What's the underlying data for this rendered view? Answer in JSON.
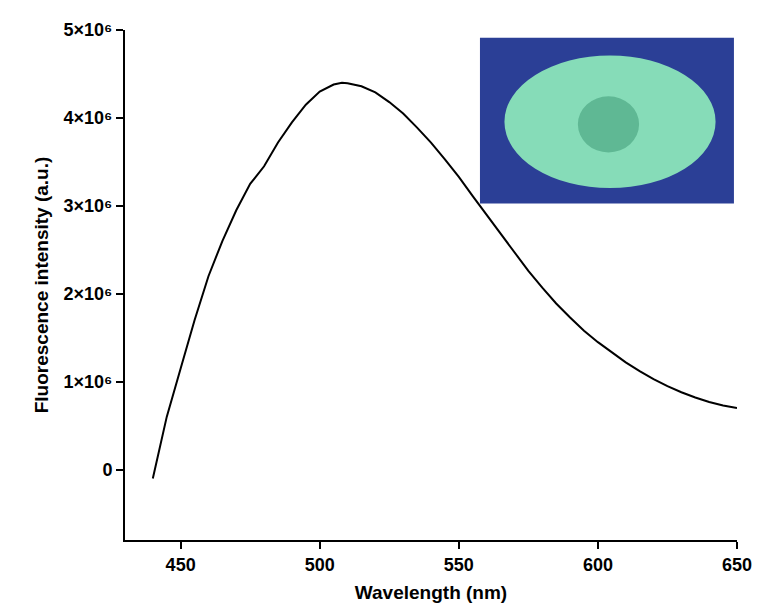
{
  "chart_data": {
    "type": "line",
    "x_label": "Wavelength (nm)",
    "y_label": "Fluorescence intensity (a.u.)",
    "x": [
      440,
      445,
      450,
      455,
      460,
      465,
      470,
      475,
      480,
      485,
      490,
      495,
      500,
      505,
      508,
      510,
      515,
      520,
      525,
      530,
      535,
      540,
      545,
      550,
      555,
      560,
      565,
      570,
      575,
      580,
      585,
      590,
      595,
      600,
      605,
      610,
      615,
      620,
      625,
      630,
      635,
      640,
      645,
      650
    ],
    "values": [
      -100000,
      600000,
      1150000,
      1700000,
      2200000,
      2600000,
      2950000,
      3250000,
      3450000,
      3720000,
      3950000,
      4150000,
      4300000,
      4380000,
      4400000,
      4395000,
      4360000,
      4290000,
      4180000,
      4050000,
      3890000,
      3720000,
      3530000,
      3330000,
      3110000,
      2900000,
      2680000,
      2470000,
      2260000,
      2070000,
      1890000,
      1730000,
      1580000,
      1450000,
      1330000,
      1220000,
      1120000,
      1030000,
      950000,
      880000,
      820000,
      770000,
      730000,
      700000
    ],
    "color": "#000000",
    "xlim": [
      430,
      650
    ],
    "ylim": [
      -800000,
      5000000
    ],
    "xticks": [
      450,
      500,
      550,
      600,
      650
    ],
    "yticks": [
      0,
      {
        "value": 1000000,
        "label": "1×10⁶"
      },
      {
        "value": 2000000,
        "label": "2×10⁶"
      },
      {
        "value": 3000000,
        "label": "3×10⁶"
      },
      {
        "value": 4000000,
        "label": "4×10⁶"
      },
      {
        "value": 5000000,
        "label": "5×10⁶"
      }
    ],
    "grid": false
  }
}
